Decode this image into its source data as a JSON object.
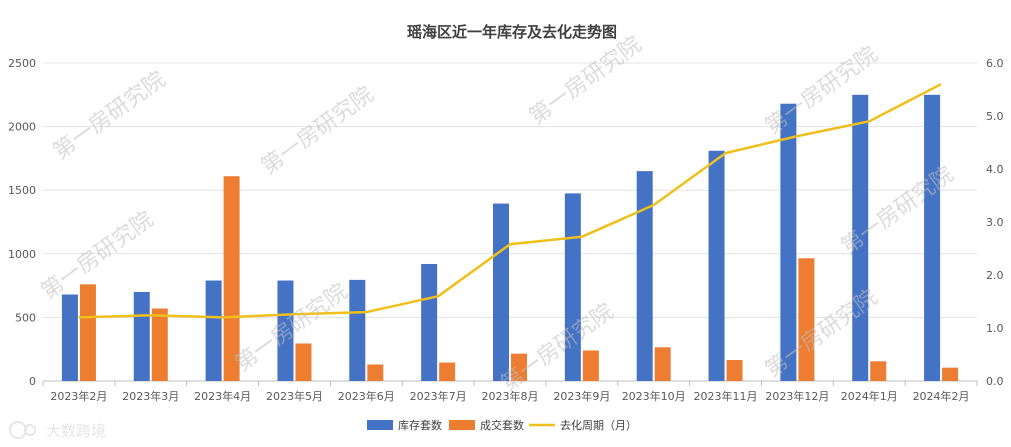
{
  "chart_data": {
    "type": "bar+line",
    "title": "瑶海区近一年库存及去化走势图",
    "categories": [
      "2023年2月",
      "2023年3月",
      "2023年4月",
      "2023年5月",
      "2023年6月",
      "2023年7月",
      "2023年8月",
      "2023年9月",
      "2023年10月",
      "2023年11月",
      "2023年12月",
      "2024年1月",
      "2024年2月"
    ],
    "series": [
      {
        "name": "库存套数",
        "type": "bar",
        "axis": "left",
        "color": "#4472C4",
        "values": [
          680,
          700,
          790,
          790,
          795,
          920,
          1395,
          1475,
          1650,
          1810,
          2180,
          2250,
          2250
        ]
      },
      {
        "name": "成交套数",
        "type": "bar",
        "axis": "left",
        "color": "#ED7D31",
        "values": [
          760,
          570,
          1610,
          295,
          130,
          145,
          215,
          240,
          265,
          165,
          965,
          155,
          105
        ]
      },
      {
        "name": "去化周期（月）",
        "type": "line",
        "axis": "right",
        "color": "#EFBF1B",
        "values": [
          1.2,
          1.24,
          1.2,
          1.26,
          1.3,
          1.6,
          2.58,
          2.72,
          3.32,
          4.3,
          4.62,
          4.9,
          5.6
        ]
      }
    ],
    "y_left": {
      "min": 0,
      "max": 2500,
      "ticks": [
        "0",
        "500",
        "1000",
        "1500",
        "2000",
        "2500"
      ]
    },
    "y_right": {
      "min": 0,
      "max": 6,
      "ticks": [
        "0.0",
        "1.0",
        "2.0",
        "3.0",
        "4.0",
        "5.0",
        "6.0"
      ]
    },
    "grid": true,
    "legend_position": "bottom"
  },
  "watermark": "第一房研究院",
  "brand_mark": "大数跨境"
}
